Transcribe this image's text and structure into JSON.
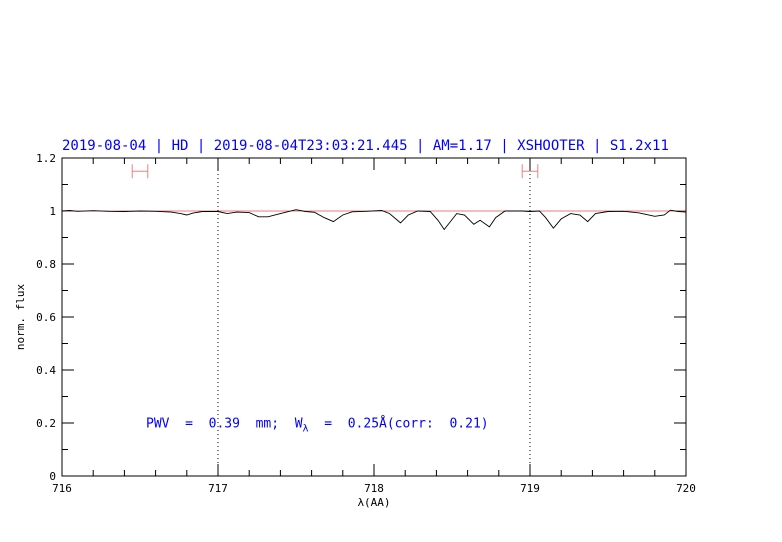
{
  "chart_data": {
    "type": "line",
    "title": "2019-08-04 | HD | 2019-08-04T23:03:21.445 | AM=1.17 | XSHOOTER | S1.2x11",
    "xlabel": "λ(AA)",
    "ylabel": "norm. flux",
    "xlim": [
      716,
      720
    ],
    "ylim": [
      0,
      1.2
    ],
    "xticks": [
      716,
      717,
      718,
      719,
      720
    ],
    "xtick_labels": [
      "716",
      "717",
      "718",
      "719",
      "720"
    ],
    "yticks": [
      0,
      0.2,
      0.4,
      0.6,
      0.8,
      1,
      1.2
    ],
    "ytick_labels": [
      "0",
      "0.2",
      "0.4",
      "0.6",
      "0.8",
      "1",
      "1.2"
    ],
    "x_minor_step": 0.2,
    "y_minor_step": 0.1,
    "grid": false,
    "vertical_dotted_lines": [
      717,
      719
    ],
    "reference_line": {
      "y": 1,
      "color": "#e05050"
    },
    "range_markers": [
      {
        "x": [
          716.45,
          716.55
        ],
        "y": 1.15,
        "color": "#f08080"
      },
      {
        "x": [
          718.95,
          719.05
        ],
        "y": 1.15,
        "color": "#f08080"
      }
    ],
    "annotation": {
      "pre": "PWV  =  0.39  mm;  W",
      "sub": "λ",
      "post": "  =  0.25Å(corr:  0.21)",
      "x": 716.5,
      "y": 0.19
    },
    "colors": {
      "title": "#0000ff",
      "annotation": "#0000ff",
      "spectrum": "#000000"
    },
    "series": [
      {
        "points": [
          [
            716.0,
            1.0
          ],
          [
            716.05,
            1.002
          ],
          [
            716.1,
            0.999
          ],
          [
            716.2,
            1.001
          ],
          [
            716.3,
            0.999
          ],
          [
            716.4,
            0.998
          ],
          [
            716.5,
            1.0
          ],
          [
            716.6,
            0.999
          ],
          [
            716.7,
            0.996
          ],
          [
            716.76,
            0.99
          ],
          [
            716.8,
            0.985
          ],
          [
            716.84,
            0.992
          ],
          [
            716.9,
            0.998
          ],
          [
            717.0,
            0.998
          ],
          [
            717.06,
            0.99
          ],
          [
            717.12,
            0.996
          ],
          [
            717.2,
            0.994
          ],
          [
            717.26,
            0.978
          ],
          [
            717.32,
            0.978
          ],
          [
            717.4,
            0.99
          ],
          [
            717.5,
            1.005
          ],
          [
            717.56,
            0.998
          ],
          [
            717.62,
            0.995
          ],
          [
            717.68,
            0.975
          ],
          [
            717.74,
            0.96
          ],
          [
            717.8,
            0.985
          ],
          [
            717.86,
            0.997
          ],
          [
            717.95,
            0.999
          ],
          [
            718.05,
            1.002
          ],
          [
            718.1,
            0.99
          ],
          [
            718.17,
            0.955
          ],
          [
            718.22,
            0.985
          ],
          [
            718.28,
            1.0
          ],
          [
            718.36,
            0.998
          ],
          [
            718.41,
            0.965
          ],
          [
            718.45,
            0.93
          ],
          [
            718.49,
            0.96
          ],
          [
            718.53,
            0.99
          ],
          [
            718.58,
            0.985
          ],
          [
            718.64,
            0.95
          ],
          [
            718.68,
            0.965
          ],
          [
            718.74,
            0.94
          ],
          [
            718.78,
            0.975
          ],
          [
            718.84,
            1.0
          ],
          [
            718.95,
            1.0
          ],
          [
            719.0,
            0.998
          ],
          [
            719.06,
            1.0
          ],
          [
            719.1,
            0.975
          ],
          [
            719.15,
            0.935
          ],
          [
            719.2,
            0.97
          ],
          [
            719.26,
            0.99
          ],
          [
            719.32,
            0.985
          ],
          [
            719.37,
            0.96
          ],
          [
            719.42,
            0.99
          ],
          [
            719.5,
            0.998
          ],
          [
            719.6,
            0.999
          ],
          [
            719.7,
            0.993
          ],
          [
            719.8,
            0.98
          ],
          [
            719.86,
            0.985
          ],
          [
            719.9,
            1.003
          ],
          [
            719.95,
            0.998
          ],
          [
            720.0,
            0.996
          ]
        ]
      }
    ]
  }
}
